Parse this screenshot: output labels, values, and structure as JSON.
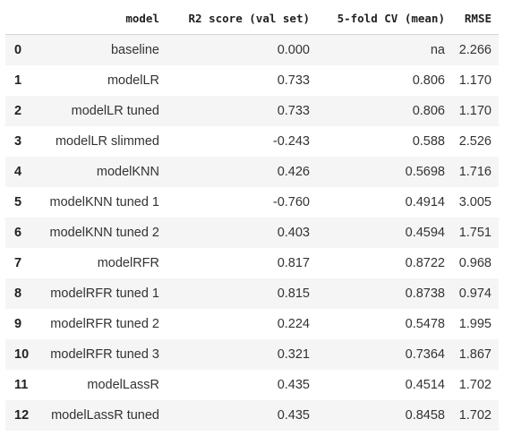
{
  "table": {
    "columns": [
      "",
      "model",
      "R2 score (val set)",
      "5-fold CV (mean)",
      "RMSE"
    ],
    "rows": [
      {
        "index": "0",
        "model": "baseline",
        "r2": "0.000",
        "cv": "na",
        "rmse": "2.266"
      },
      {
        "index": "1",
        "model": "modelLR",
        "r2": "0.733",
        "cv": "0.806",
        "rmse": "1.170"
      },
      {
        "index": "2",
        "model": "modelLR tuned",
        "r2": "0.733",
        "cv": "0.806",
        "rmse": "1.170"
      },
      {
        "index": "3",
        "model": "modelLR slimmed",
        "r2": "-0.243",
        "cv": "0.588",
        "rmse": "2.526"
      },
      {
        "index": "4",
        "model": "modelKNN",
        "r2": "0.426",
        "cv": "0.5698",
        "rmse": "1.716"
      },
      {
        "index": "5",
        "model": "modelKNN tuned 1",
        "r2": "-0.760",
        "cv": "0.4914",
        "rmse": "3.005"
      },
      {
        "index": "6",
        "model": "modelKNN tuned 2",
        "r2": "0.403",
        "cv": "0.4594",
        "rmse": "1.751"
      },
      {
        "index": "7",
        "model": "modelRFR",
        "r2": "0.817",
        "cv": "0.8722",
        "rmse": "0.968"
      },
      {
        "index": "8",
        "model": "modelRFR tuned 1",
        "r2": "0.815",
        "cv": "0.8738",
        "rmse": "0.974"
      },
      {
        "index": "9",
        "model": "modelRFR tuned 2",
        "r2": "0.224",
        "cv": "0.5478",
        "rmse": "1.995"
      },
      {
        "index": "10",
        "model": "modelRFR tuned 3",
        "r2": "0.321",
        "cv": "0.7364",
        "rmse": "1.867"
      },
      {
        "index": "11",
        "model": "modelLassR",
        "r2": "0.435",
        "cv": "0.4514",
        "rmse": "1.702"
      },
      {
        "index": "12",
        "model": "modelLassR tuned",
        "r2": "0.435",
        "cv": "0.8458",
        "rmse": "1.702"
      }
    ]
  },
  "colors": {
    "stripe": "#f5f5f5",
    "header_border": "#d6d6d6"
  }
}
